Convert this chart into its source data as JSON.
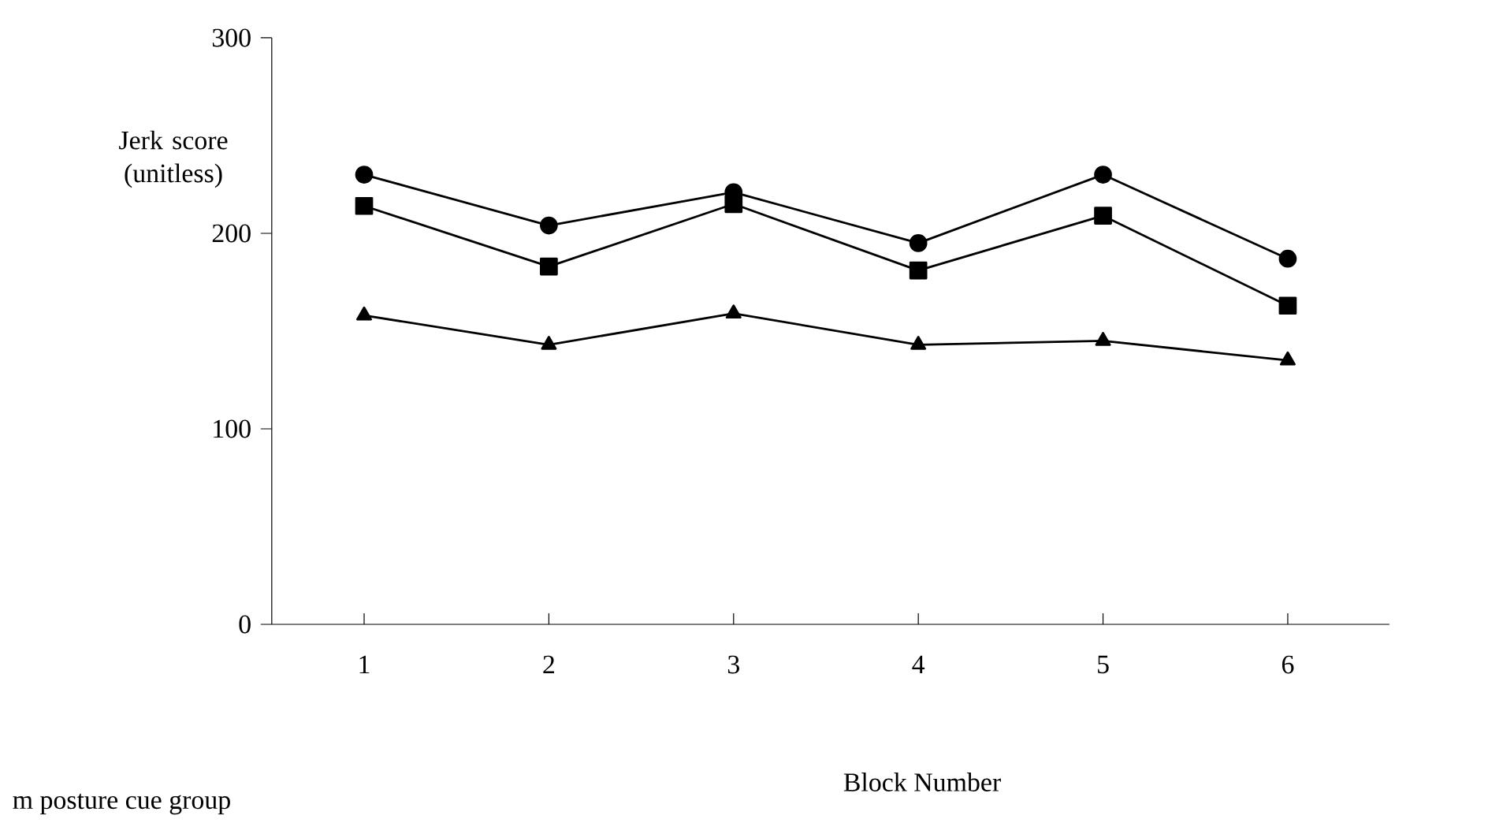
{
  "chart_data": {
    "type": "line",
    "xlabel": "Block Number",
    "ylabel": "Jerk score (unitless)",
    "categories": [
      "1",
      "2",
      "3",
      "4",
      "5",
      "6"
    ],
    "series": [
      {
        "color": "#000000",
        "marker": "circle",
        "values": [
          230,
          204,
          221,
          195,
          230,
          187
        ]
      },
      {
        "color": "#000000",
        "marker": "square",
        "values": [
          214,
          183,
          215,
          181,
          209,
          163
        ]
      },
      {
        "color": "#000000",
        "marker": "triangle",
        "values": [
          158,
          143,
          159,
          143,
          145,
          135
        ]
      }
    ],
    "ylim": [
      0,
      300
    ],
    "yticks": [
      0,
      100,
      200,
      300
    ],
    "annotations": [
      "m posture cue group"
    ]
  }
}
